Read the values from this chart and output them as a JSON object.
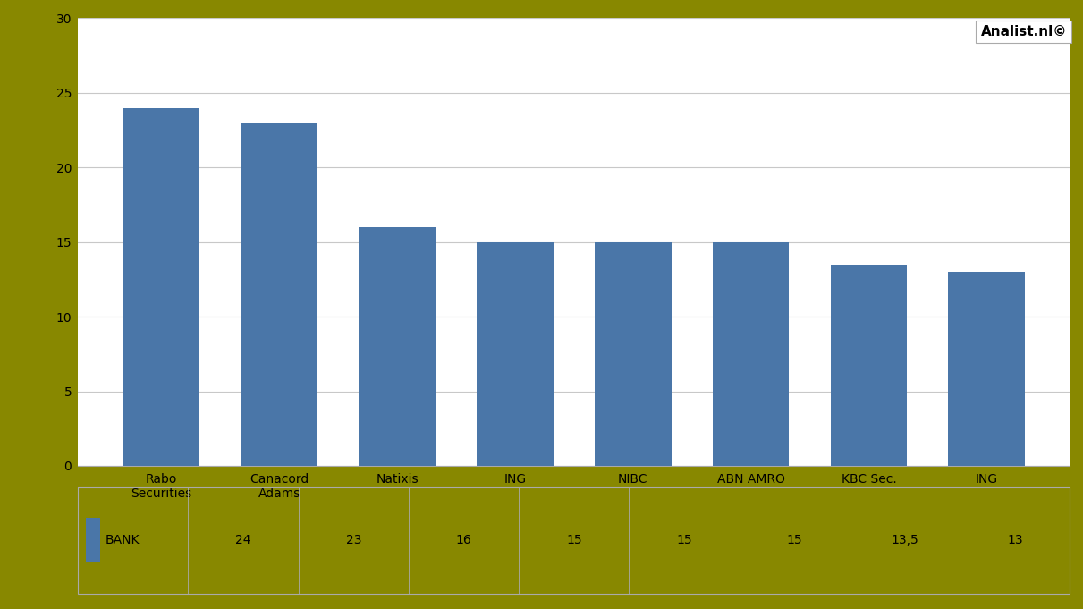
{
  "categories": [
    "Rabo\nSecurities",
    "Canacord\nAdams",
    "Natixis",
    "ING",
    "NIBC",
    "ABN AMRO",
    "KBC Sec.",
    "ING"
  ],
  "values": [
    24,
    23,
    16,
    15,
    15,
    15,
    13.5,
    13
  ],
  "table_labels": [
    "24",
    "23",
    "16",
    "15",
    "15",
    "15",
    "13,5",
    "13"
  ],
  "bar_color": "#4a76a8",
  "background_color": "#ffffff",
  "outer_border_color": "#888800",
  "grid_color": "#c8c8c8",
  "ylim": [
    0,
    30
  ],
  "yticks": [
    0,
    5,
    10,
    15,
    20,
    25,
    30
  ],
  "legend_label": "BANK",
  "legend_color": "#4a76a8",
  "watermark": "Analist.nl©",
  "tick_fontsize": 10,
  "table_fontsize": 10,
  "watermark_fontsize": 11,
  "border_thickness": 7
}
